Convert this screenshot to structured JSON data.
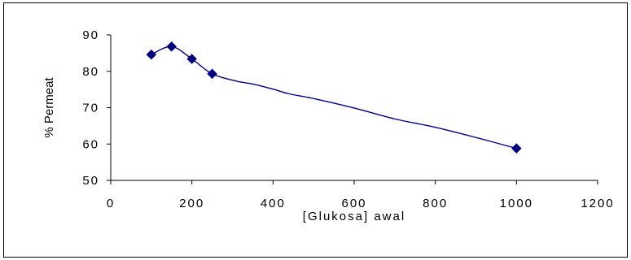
{
  "chart_data": {
    "type": "line",
    "title": "",
    "xlabel": "[Glukosa] awal",
    "ylabel": "% Permeat",
    "xlim": [
      0,
      1200
    ],
    "ylim": [
      50,
      90
    ],
    "xticks": [
      0,
      200,
      400,
      600,
      800,
      1000,
      1200
    ],
    "yticks": [
      50,
      60,
      70,
      80,
      90
    ],
    "grid": false,
    "series": [
      {
        "markers": [
          {
            "x": 100,
            "y": 84.6
          },
          {
            "x": 150,
            "y": 86.8
          },
          {
            "x": 200,
            "y": 83.4
          },
          {
            "x": 250,
            "y": 79.3
          },
          {
            "x": 1000,
            "y": 58.8
          }
        ],
        "curve": [
          {
            "x": 100,
            "y": 84.6
          },
          {
            "x": 150,
            "y": 86.8
          },
          {
            "x": 200,
            "y": 83.4
          },
          {
            "x": 250,
            "y": 79.3
          },
          {
            "x": 310,
            "y": 77.3
          },
          {
            "x": 350,
            "y": 76.5
          },
          {
            "x": 400,
            "y": 75.1
          },
          {
            "x": 440,
            "y": 73.8
          },
          {
            "x": 500,
            "y": 72.5
          },
          {
            "x": 600,
            "y": 69.9
          },
          {
            "x": 700,
            "y": 66.9
          },
          {
            "x": 800,
            "y": 64.6
          },
          {
            "x": 900,
            "y": 61.8
          },
          {
            "x": 1000,
            "y": 58.8
          }
        ]
      }
    ],
    "colors": {
      "series": "#000080",
      "axis": "#000000"
    }
  }
}
